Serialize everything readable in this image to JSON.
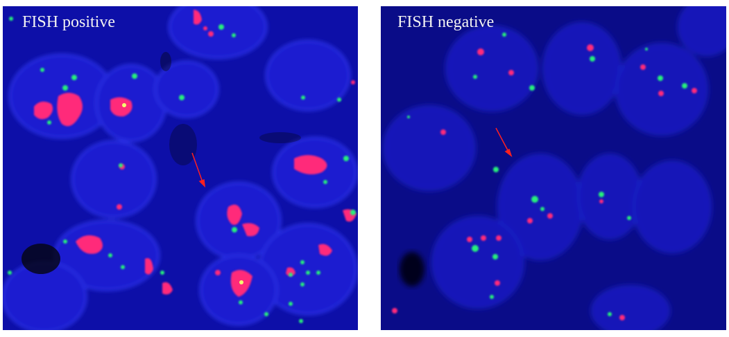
{
  "panels": [
    {
      "label": "FISH positive"
    },
    {
      "label": "FISH negative"
    }
  ],
  "colors": {
    "nucleus_stain": "#1a1fd0",
    "red_signal": "#ff2a7a",
    "green_signal": "#27f07a",
    "arrow": "#ff2020"
  }
}
